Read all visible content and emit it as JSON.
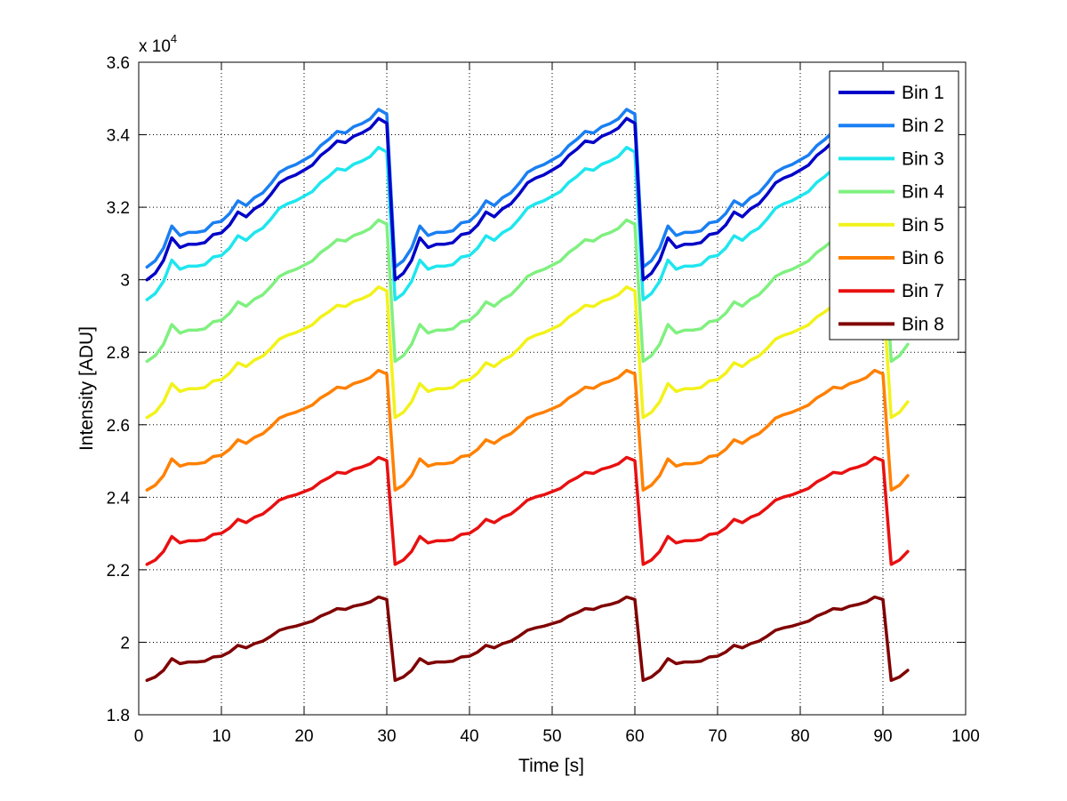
{
  "chart_data": {
    "type": "line",
    "title": "",
    "xlabel": "Time [s]",
    "ylabel": "Intensity [ADU]",
    "y_multiplier_label": "x 10",
    "y_multiplier_exponent": "4",
    "xlim": [
      0,
      100
    ],
    "ylim": [
      18000,
      36000
    ],
    "x_ticks": [
      0,
      10,
      20,
      30,
      40,
      50,
      60,
      70,
      80,
      90,
      100
    ],
    "x_tick_labels": [
      "0",
      "10",
      "20",
      "30",
      "40",
      "50",
      "60",
      "70",
      "80",
      "90",
      "100"
    ],
    "y_ticks": [
      18000,
      20000,
      22000,
      24000,
      26000,
      28000,
      30000,
      32000,
      34000,
      36000
    ],
    "y_tick_labels": [
      "1.8",
      "2",
      "2.2",
      "2.4",
      "2.6",
      "2.8",
      "3",
      "3.2",
      "3.4",
      "3.6"
    ],
    "grid": true,
    "legend_position": "top-right",
    "period_s": 30,
    "cycle_shape": [
      0,
      0.04,
      0.12,
      0.26,
      0.2,
      0.22,
      0.22,
      0.23,
      0.28,
      0.29,
      0.34,
      0.42,
      0.39,
      0.44,
      0.47,
      0.53,
      0.6,
      0.63,
      0.65,
      0.68,
      0.71,
      0.77,
      0.81,
      0.86,
      0.85,
      0.89,
      0.91,
      0.94,
      1.0,
      0.97
    ],
    "notes": "Each series repeats the cycle_shape pattern with a 30 s period; value = start + (peak - start) * shape; last cycle truncated at t = 93 s.",
    "series": [
      {
        "name": "Bin 1",
        "color": "#0000c8",
        "start": 30000,
        "peak": 34450,
        "x_end": 93
      },
      {
        "name": "Bin 2",
        "color": "#1a7ff2",
        "start": 30350,
        "peak": 34700,
        "x_end": 93
      },
      {
        "name": "Bin 3",
        "color": "#1ee6ee",
        "start": 29450,
        "peak": 33650,
        "x_end": 93
      },
      {
        "name": "Bin 4",
        "color": "#7ff07f",
        "start": 27750,
        "peak": 31650,
        "x_end": 93
      },
      {
        "name": "Bin 5",
        "color": "#f2f21a",
        "start": 26200,
        "peak": 29800,
        "x_end": 93
      },
      {
        "name": "Bin 6",
        "color": "#ff8000",
        "start": 24200,
        "peak": 27500,
        "x_end": 93
      },
      {
        "name": "Bin 7",
        "color": "#e81010",
        "start": 22150,
        "peak": 25100,
        "x_end": 93
      },
      {
        "name": "Bin 8",
        "color": "#800000",
        "start": 18950,
        "peak": 21250,
        "x_end": 93
      }
    ]
  }
}
